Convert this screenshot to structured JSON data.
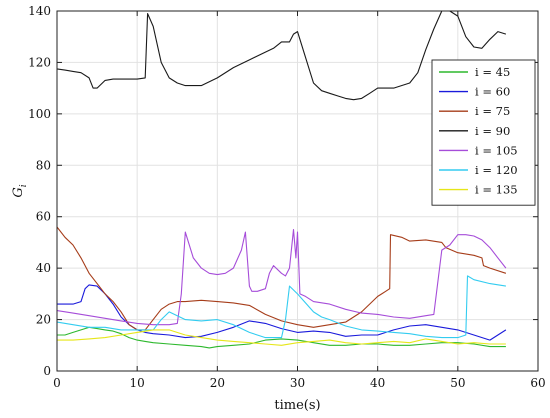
{
  "chart_data": {
    "type": "line",
    "title": "",
    "xlabel": "time(s)",
    "ylabel": "G",
    "ylabel_subscript": "i",
    "xlim": [
      0,
      60
    ],
    "ylim": [
      0,
      140
    ],
    "xticks": [
      0,
      10,
      20,
      30,
      40,
      50,
      60
    ],
    "yticks": [
      0,
      20,
      40,
      60,
      80,
      100,
      120,
      140
    ],
    "grid": true,
    "legend_position": "right",
    "series": [
      {
        "name": "i = 45",
        "color": "#2db82d",
        "x": [
          0,
          1,
          2,
          3,
          4,
          5,
          6,
          7,
          8,
          9,
          10,
          11,
          12,
          14,
          16,
          18,
          19,
          20,
          22,
          24,
          26,
          28,
          30,
          32,
          34,
          36,
          38,
          40,
          42,
          44,
          46,
          48,
          50,
          52,
          54,
          56
        ],
        "y": [
          14,
          14,
          15,
          16,
          17,
          16.5,
          16,
          15.5,
          14.5,
          13,
          12,
          11.5,
          11,
          10.5,
          10,
          9.5,
          9,
          9.5,
          10,
          10.5,
          12,
          12.5,
          12,
          11,
          10,
          10,
          10.5,
          10.5,
          10,
          10,
          10.5,
          11,
          11,
          10.5,
          9.5,
          9.5
        ]
      },
      {
        "name": "i = 60",
        "color": "#1a1adb",
        "x": [
          0,
          2,
          3,
          3.5,
          4,
          5,
          6,
          7,
          8,
          9,
          10,
          11,
          12,
          14,
          16,
          18,
          20,
          22,
          24,
          26,
          28,
          30,
          32,
          34,
          36,
          38,
          40,
          42,
          44,
          46,
          48,
          50,
          52,
          54,
          56
        ],
        "y": [
          26,
          26,
          27,
          32,
          33.5,
          33,
          30,
          26,
          21,
          18,
          16,
          15,
          14.5,
          14,
          13,
          13.5,
          15,
          17,
          19.5,
          18.5,
          16.5,
          15,
          15.5,
          15,
          13.5,
          14,
          14,
          16,
          17.5,
          18,
          17,
          16,
          14,
          12,
          16
        ]
      },
      {
        "name": "i = 75",
        "color": "#a63d1a",
        "x": [
          0,
          1,
          2,
          3,
          4,
          5,
          6,
          7,
          8,
          9,
          10,
          11,
          12,
          13,
          14,
          15,
          16,
          18,
          20,
          22,
          24,
          26,
          28,
          30,
          32,
          34,
          36,
          38,
          40,
          40.5,
          41,
          41.5,
          41.6,
          43,
          44,
          46,
          48,
          48.5,
          50,
          52,
          53,
          53.2,
          54,
          56
        ],
        "y": [
          56,
          52,
          49,
          44,
          38,
          34,
          30,
          27,
          23,
          18,
          16,
          16,
          20,
          24,
          26,
          27,
          27,
          27.5,
          27,
          26.5,
          25.5,
          22,
          19.5,
          18,
          17,
          18,
          19,
          23,
          29,
          30,
          31,
          32,
          53,
          52,
          50.5,
          51,
          50,
          48,
          46,
          45,
          44,
          41,
          40,
          38
        ]
      },
      {
        "name": "i = 90",
        "color": "#1a1a1a",
        "x": [
          0,
          1,
          2,
          3,
          4,
          4.5,
          5,
          6,
          7,
          8,
          9,
          10,
          11,
          11.3,
          12,
          13,
          14,
          15,
          16,
          18,
          20,
          22,
          24,
          26,
          27,
          28,
          29,
          29.5,
          30,
          31,
          32,
          33,
          34,
          35,
          36,
          37,
          38,
          39,
          40,
          42,
          44,
          45,
          46,
          47,
          48,
          48.5,
          49,
          50,
          51,
          52,
          53,
          54,
          55,
          56
        ],
        "y": [
          117.5,
          117,
          116.5,
          116,
          114,
          110,
          110,
          113,
          113.5,
          113.5,
          113.5,
          113.5,
          114,
          139,
          134,
          120,
          114,
          112,
          111,
          111,
          114,
          118,
          121,
          124,
          125.5,
          128,
          128,
          131,
          132,
          122,
          112,
          109,
          108,
          107,
          106,
          105.5,
          106,
          108,
          110,
          110,
          112,
          116,
          125,
          133,
          140,
          140,
          140,
          138,
          130,
          126,
          125.5,
          129,
          132,
          131
        ]
      },
      {
        "name": "i = 105",
        "color": "#a64dd9",
        "x": [
          0,
          2,
          4,
          6,
          8,
          10,
          12,
          14,
          15,
          15.5,
          16,
          17,
          18,
          19,
          20,
          21,
          22,
          23,
          23.5,
          24,
          24.3,
          25,
          26,
          26.5,
          27,
          28,
          28.5,
          29,
          29.5,
          29.8,
          30,
          30.3,
          31,
          32,
          34,
          36,
          38,
          40,
          42,
          44,
          46,
          47,
          48,
          49,
          50,
          51,
          52,
          53,
          54,
          55,
          56
        ],
        "y": [
          23.5,
          22.5,
          21.5,
          20.5,
          19.5,
          18.5,
          18,
          18,
          18.5,
          30,
          54,
          44,
          40,
          38,
          37.5,
          38,
          40,
          47,
          54,
          33,
          31,
          31,
          32,
          38,
          41,
          38,
          37,
          40,
          55,
          44,
          54,
          30,
          29,
          27,
          26,
          24,
          22.5,
          22,
          21,
          20.5,
          21.5,
          22,
          47,
          49,
          53,
          53,
          52.5,
          51,
          48,
          44,
          40
        ]
      },
      {
        "name": "i = 120",
        "color": "#33ccf0",
        "x": [
          0,
          2,
          4,
          6,
          8,
          10,
          12,
          13,
          14,
          16,
          18,
          20,
          22,
          24,
          26,
          28,
          28.5,
          29,
          30,
          31,
          32,
          33,
          34,
          36,
          38,
          40,
          42,
          44,
          46,
          48,
          50,
          51,
          51.2,
          52,
          54,
          56
        ],
        "y": [
          19,
          18,
          17,
          17,
          16,
          16,
          16,
          20,
          23,
          20,
          19.5,
          20,
          18,
          15,
          13,
          13,
          20,
          33,
          30,
          26.5,
          23,
          21,
          20,
          17.5,
          16,
          15.5,
          15,
          14.5,
          13.5,
          13,
          13,
          14,
          37,
          35.5,
          34,
          33
        ]
      },
      {
        "name": "i = 135",
        "color": "#e6e619",
        "x": [
          0,
          2,
          4,
          6,
          8,
          10,
          12,
          14,
          16,
          18,
          20,
          22,
          24,
          26,
          28,
          30,
          32,
          34,
          36,
          38,
          40,
          42,
          44,
          46,
          48,
          50,
          52,
          54,
          56
        ],
        "y": [
          12,
          12,
          12.5,
          13,
          14,
          15,
          16,
          16,
          14,
          13,
          12,
          11.5,
          11,
          10.5,
          10,
          11,
          11.5,
          12,
          11,
          10.5,
          11,
          11.5,
          11,
          12.5,
          11.5,
          10.5,
          11,
          10.5,
          10.5
        ]
      }
    ]
  }
}
